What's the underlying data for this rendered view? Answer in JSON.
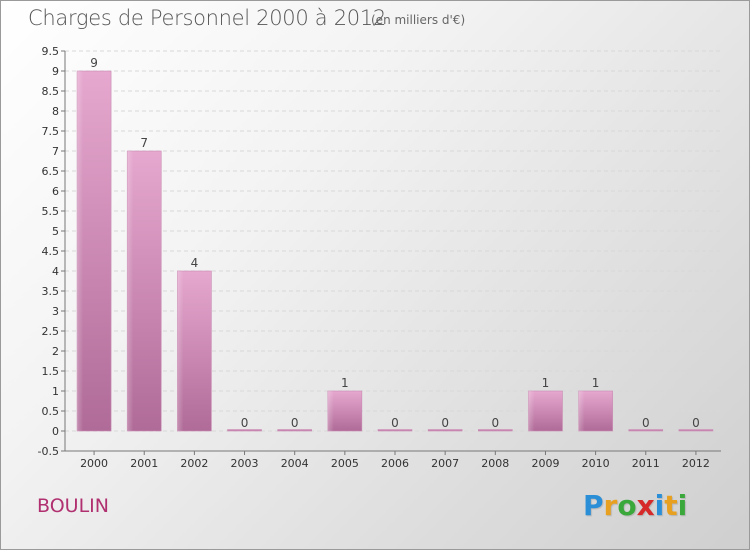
{
  "header": {
    "title": "Charges de Personnel 2000 à 2012",
    "subtitle": "(en milliers d'€)"
  },
  "footer": {
    "commune": "BOULIN",
    "logo_letters": [
      "P",
      "r",
      "o",
      "x",
      "i",
      "t",
      "i"
    ],
    "logo_colors": [
      "#2a8fd6",
      "#e8a020",
      "#3aa83a",
      "#d62a2a",
      "#2a8fd6",
      "#e8a020",
      "#3aa83a"
    ]
  },
  "chart_data": {
    "type": "bar",
    "title": "Charges de Personnel 2000 à 2012",
    "subtitle": "(en milliers d'€)",
    "categories": [
      "2000",
      "2001",
      "2002",
      "2003",
      "2004",
      "2005",
      "2006",
      "2007",
      "2008",
      "2009",
      "2010",
      "2011",
      "2012"
    ],
    "values": [
      9,
      7,
      4,
      0,
      0,
      1,
      0,
      0,
      0,
      1,
      1,
      0,
      0
    ],
    "value_labels": [
      "9",
      "7",
      "4",
      "0",
      "0",
      "1",
      "0",
      "0",
      "0",
      "1",
      "1",
      "0",
      "0"
    ],
    "y_ticks": [
      "-0.5",
      "0",
      "0.5",
      "1",
      "1.5",
      "2",
      "2.5",
      "3",
      "3.5",
      "4",
      "4.5",
      "5",
      "5.5",
      "6",
      "6.5",
      "7",
      "7.5",
      "8",
      "8.5",
      "9",
      "9.5"
    ],
    "ylim": [
      -0.5,
      9.5
    ],
    "grid": true,
    "bar_color": "#d88cb8",
    "xlabel": "",
    "ylabel": ""
  }
}
